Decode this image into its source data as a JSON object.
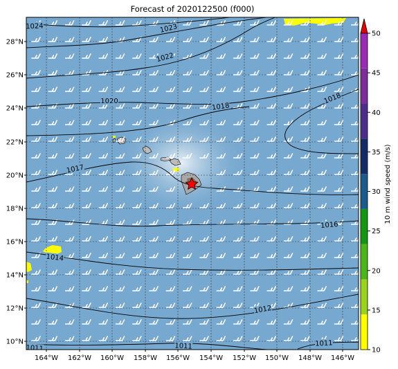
{
  "title": "Forecast of 2020122500 (f000)",
  "map": {
    "ocean_color": "#77a8cf",
    "light_color": "#d4e4ee",
    "land_color": "#bcbcbc",
    "contour_color": "#000000",
    "gridline_color": "#333333",
    "barb_color": "#ffffff",
    "marker": "red-star",
    "lon_labels": [
      "164°W",
      "162°W",
      "160°W",
      "158°W",
      "156°W",
      "154°W",
      "152°W",
      "150°W",
      "148°W",
      "146°W"
    ],
    "lat_labels": [
      "28°N",
      "26°N",
      "24°N",
      "22°N",
      "20°N",
      "18°N",
      "16°N",
      "14°N",
      "12°N",
      "10°N"
    ],
    "contour_labels": [
      "1024",
      "1023",
      "1022",
      "1020",
      "1018",
      "1018",
      "1017",
      "1016",
      "1014",
      "1012",
      "1011",
      "1011",
      "1011"
    ]
  },
  "colorbar": {
    "label": "10 m wind speed (m/s)",
    "ticks": [
      "10",
      "15",
      "20",
      "25",
      "30",
      "35",
      "40",
      "45",
      "50"
    ],
    "colors": [
      "#ffff00",
      "#9ad21e",
      "#4db51c",
      "#149614",
      "#1c5a8c",
      "#142c64",
      "#4c2e88",
      "#7c2e98",
      "#9a2cb4"
    ],
    "extend_color": "#e00000"
  }
}
